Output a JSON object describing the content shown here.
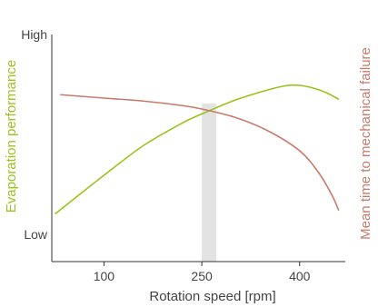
{
  "chart_data": {
    "type": "line",
    "xlabel": "Rotation speed [rpm]",
    "x_ticks": [
      100,
      250,
      400
    ],
    "x_tick_labels": [
      "100",
      "250",
      "400"
    ],
    "xlim": [
      20,
      470
    ],
    "y_left_label": "Evaporation performance",
    "y_left_ticks": [
      "High",
      "Low"
    ],
    "y_right_label": "Mean time to mechanical failure",
    "ylim": [
      0,
      1
    ],
    "highlight_band": {
      "x_start": 250,
      "x_end": 272
    },
    "series": [
      {
        "name": "Evaporation performance",
        "color": "#9ac41c",
        "points": [
          [
            25,
            0.21
          ],
          [
            100,
            0.38
          ],
          [
            160,
            0.51
          ],
          [
            220,
            0.61
          ],
          [
            250,
            0.65
          ],
          [
            300,
            0.71
          ],
          [
            350,
            0.755
          ],
          [
            380,
            0.775
          ],
          [
            400,
            0.776
          ],
          [
            420,
            0.765
          ],
          [
            440,
            0.745
          ],
          [
            460,
            0.715
          ]
        ]
      },
      {
        "name": "Mean time to mechanical failure",
        "color": "#c87a6b",
        "points": [
          [
            33,
            0.735
          ],
          [
            100,
            0.72
          ],
          [
            160,
            0.707
          ],
          [
            220,
            0.687
          ],
          [
            250,
            0.672
          ],
          [
            300,
            0.636
          ],
          [
            350,
            0.578
          ],
          [
            400,
            0.488
          ],
          [
            430,
            0.388
          ],
          [
            450,
            0.29
          ],
          [
            460,
            0.225
          ]
        ]
      }
    ],
    "colors": {
      "axis": "#333333",
      "band": "#e3e3e3",
      "left_title": "#9ac41c",
      "right_title": "#c87a6b",
      "tick_text": "#444444"
    }
  }
}
